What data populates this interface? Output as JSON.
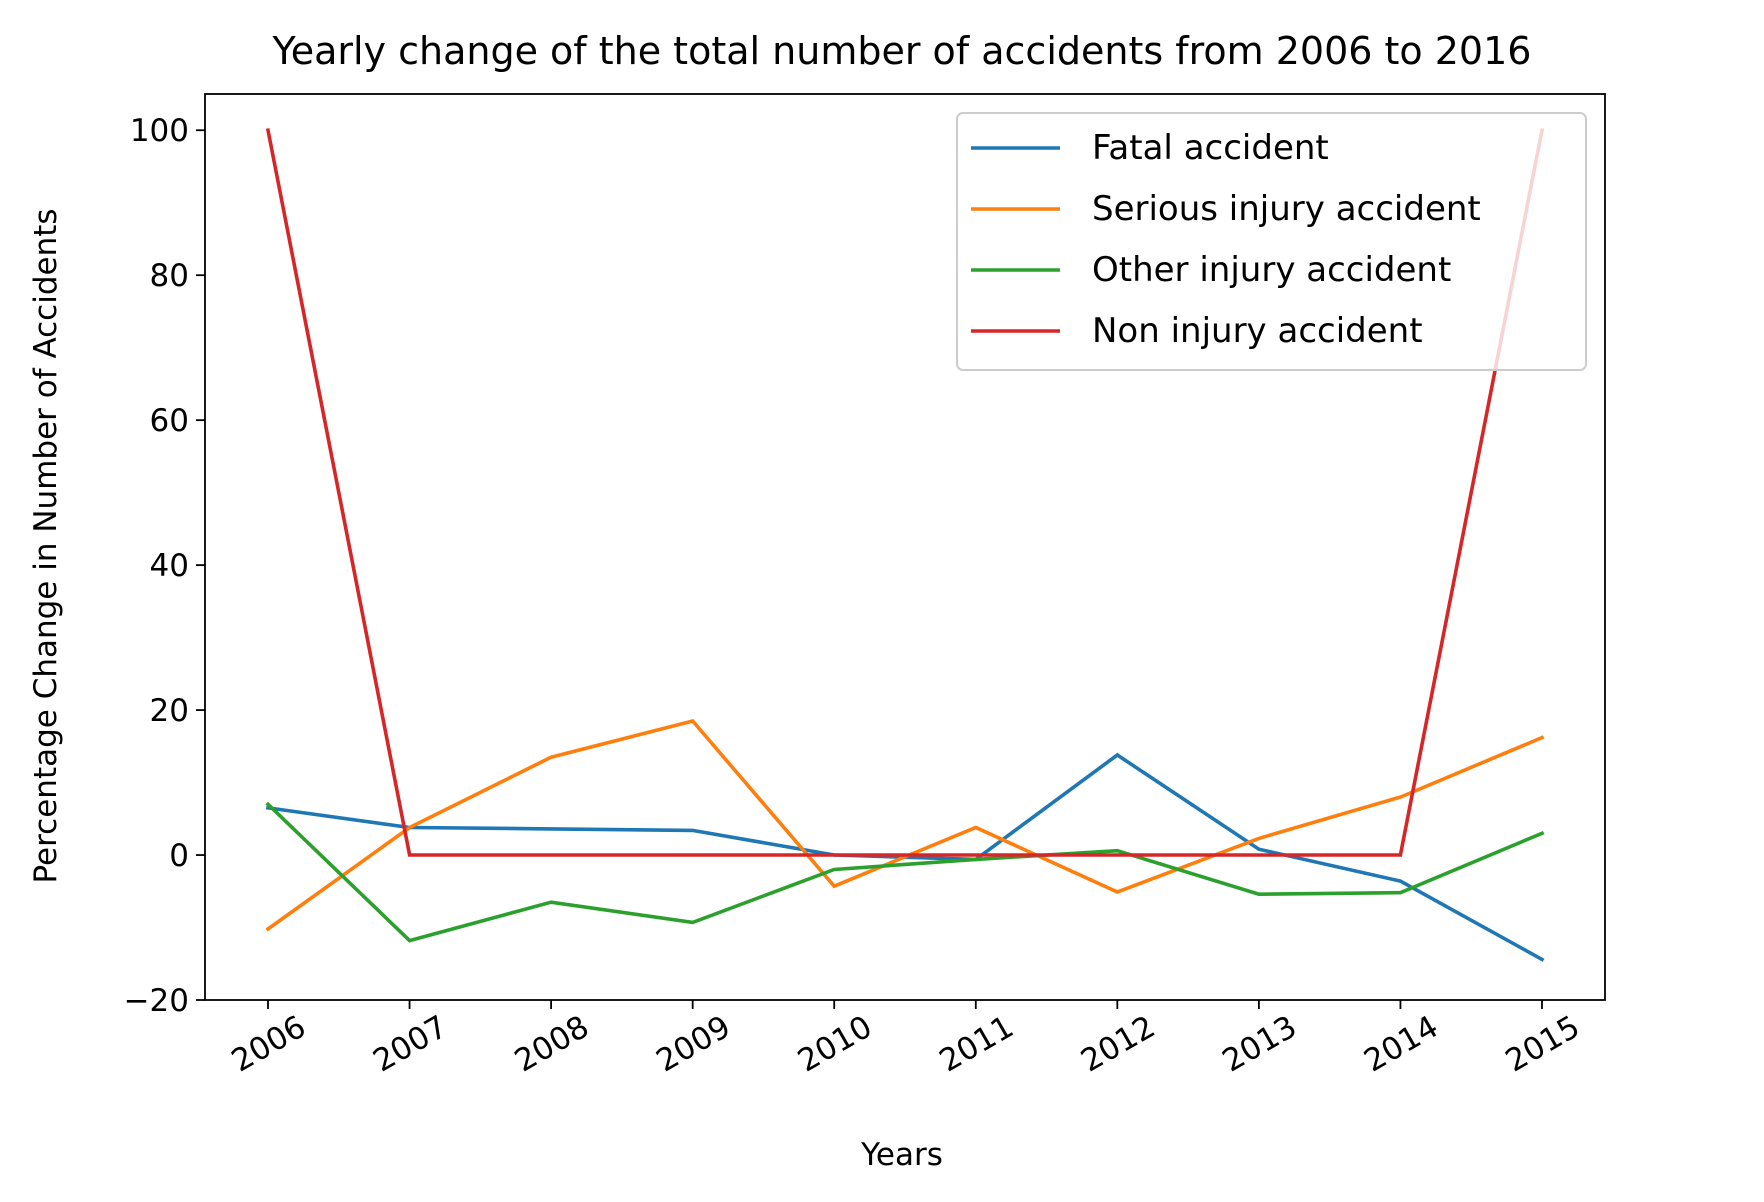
{
  "chart_data": {
    "type": "line",
    "title": "Yearly change of the total number of accidents from 2006 to 2016",
    "xlabel": "Years",
    "ylabel": "Percentage Change in Number of Accidents",
    "categories": [
      "2006",
      "2007",
      "2008",
      "2009",
      "2010",
      "2011",
      "2012",
      "2013",
      "2014",
      "2015"
    ],
    "ylim": [
      -20,
      105
    ],
    "yticks": [
      -20,
      0,
      20,
      40,
      60,
      80,
      100
    ],
    "ytick_labels": [
      "−20",
      "0",
      "20",
      "40",
      "60",
      "80",
      "100"
    ],
    "grid": false,
    "legend_position": "top-right",
    "series": [
      {
        "name": "Fatal accident",
        "color": "#1f77b4",
        "values": [
          6.5,
          3.8,
          3.6,
          3.4,
          0.0,
          -0.6,
          13.8,
          0.8,
          -3.6,
          -14.4
        ]
      },
      {
        "name": "Serious injury accident",
        "color": "#ff7f0e",
        "values": [
          -10.2,
          3.8,
          13.5,
          18.5,
          -4.3,
          3.8,
          -5.1,
          2.3,
          8.0,
          16.2
        ]
      },
      {
        "name": "Other injury accident",
        "color": "#2ca02c",
        "values": [
          7.0,
          -11.8,
          -6.5,
          -9.3,
          -2.0,
          -0.6,
          0.6,
          -5.4,
          -5.2,
          3.0
        ]
      },
      {
        "name": "Non injury accident",
        "color": "#d62728",
        "values": [
          100.0,
          0.0,
          0.0,
          0.0,
          0.0,
          0.0,
          0.0,
          0.0,
          0.0,
          100.0
        ]
      }
    ]
  }
}
